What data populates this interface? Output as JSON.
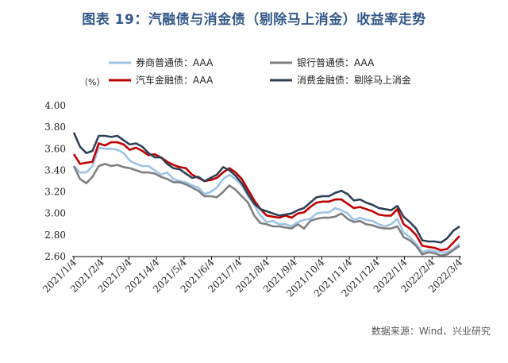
{
  "chart_data": {
    "type": "line",
    "title": "图表 19：汽融债与消金债（剔除马上消金）收益率走势",
    "ylabel": "（%）",
    "xlabel": "",
    "ylim": [
      2.6,
      4.0
    ],
    "yticks": [
      "4.00",
      "3.80",
      "3.60",
      "3.40",
      "3.20",
      "3.00",
      "2.80",
      "2.60"
    ],
    "ytick_values": [
      4.0,
      3.8,
      3.6,
      3.4,
      3.2,
      3.0,
      2.8,
      2.6
    ],
    "xticks": [
      "2021/1/4",
      "2021/2/4",
      "2021/3/4",
      "2021/4/4",
      "2021/5/4",
      "2021/6/4",
      "2021/7/4",
      "2021/8/4",
      "2021/9/4",
      "2021/10/4",
      "2021/11/4",
      "2021/12/4",
      "2022/1/4",
      "2022/2/4",
      "2022/3/4"
    ],
    "legend_position": "top",
    "grid": false,
    "series": [
      {
        "name": "券商普通债：AAA",
        "color": "#9dc3e6",
        "values": [
          3.44,
          3.38,
          3.38,
          3.44,
          3.61,
          3.6,
          3.6,
          3.59,
          3.56,
          3.49,
          3.46,
          3.44,
          3.44,
          3.4,
          3.36,
          3.38,
          3.32,
          3.3,
          3.29,
          3.26,
          3.24,
          3.18,
          3.2,
          3.24,
          3.32,
          3.36,
          3.32,
          3.26,
          3.16,
          3.08,
          2.98,
          2.92,
          2.93,
          2.9,
          2.9,
          2.88,
          2.92,
          2.94,
          2.95,
          3.0,
          3.01,
          3.01,
          3.05,
          3.03,
          3.0,
          2.94,
          2.96,
          2.94,
          2.93,
          2.9,
          2.88,
          2.9,
          2.95,
          2.82,
          2.78,
          2.72,
          2.64,
          2.66,
          2.65,
          2.64,
          2.64,
          2.67,
          2.72
        ]
      },
      {
        "name": "银行普通债：AAA",
        "color": "#7f7f7f",
        "values": [
          3.44,
          3.32,
          3.28,
          3.34,
          3.44,
          3.46,
          3.44,
          3.45,
          3.43,
          3.42,
          3.4,
          3.38,
          3.38,
          3.37,
          3.34,
          3.32,
          3.29,
          3.29,
          3.27,
          3.24,
          3.21,
          3.16,
          3.16,
          3.15,
          3.2,
          3.26,
          3.22,
          3.16,
          3.1,
          2.98,
          2.91,
          2.9,
          2.88,
          2.88,
          2.87,
          2.86,
          2.9,
          2.86,
          2.93,
          2.95,
          2.96,
          2.96,
          2.97,
          3.0,
          2.95,
          2.92,
          2.93,
          2.9,
          2.89,
          2.87,
          2.86,
          2.86,
          2.88,
          2.78,
          2.75,
          2.7,
          2.62,
          2.64,
          2.63,
          2.61,
          2.62,
          2.66,
          2.7
        ]
      },
      {
        "name": "汽车金融债：AAA",
        "color": "#c00000",
        "values": [
          3.55,
          3.46,
          3.47,
          3.48,
          3.65,
          3.63,
          3.66,
          3.66,
          3.64,
          3.59,
          3.61,
          3.58,
          3.54,
          3.55,
          3.52,
          3.48,
          3.45,
          3.43,
          3.42,
          3.36,
          3.33,
          3.3,
          3.31,
          3.33,
          3.38,
          3.42,
          3.38,
          3.32,
          3.22,
          3.12,
          3.04,
          2.98,
          2.97,
          2.96,
          2.98,
          2.96,
          3.0,
          3.01,
          3.06,
          3.1,
          3.11,
          3.11,
          3.13,
          3.13,
          3.09,
          3.05,
          3.06,
          3.04,
          3.02,
          2.99,
          2.98,
          2.98,
          3.04,
          2.9,
          2.86,
          2.8,
          2.7,
          2.69,
          2.68,
          2.66,
          2.67,
          2.73,
          2.79
        ]
      },
      {
        "name": "消费金融债：剔除马上消金",
        "color": "#2e4057",
        "values": [
          3.75,
          3.62,
          3.56,
          3.58,
          3.72,
          3.72,
          3.71,
          3.72,
          3.68,
          3.64,
          3.65,
          3.62,
          3.56,
          3.52,
          3.52,
          3.46,
          3.42,
          3.41,
          3.37,
          3.33,
          3.34,
          3.3,
          3.33,
          3.36,
          3.43,
          3.4,
          3.35,
          3.28,
          3.18,
          3.09,
          3.04,
          3.02,
          3.0,
          2.98,
          2.99,
          3.0,
          3.03,
          3.05,
          3.1,
          3.15,
          3.16,
          3.16,
          3.19,
          3.21,
          3.18,
          3.12,
          3.13,
          3.1,
          3.08,
          3.05,
          3.04,
          3.03,
          3.07,
          2.97,
          2.92,
          2.86,
          2.75,
          2.74,
          2.74,
          2.73,
          2.77,
          2.84,
          2.88
        ]
      }
    ]
  },
  "footer": {
    "source": "数据来源：Wind、兴业研究"
  }
}
